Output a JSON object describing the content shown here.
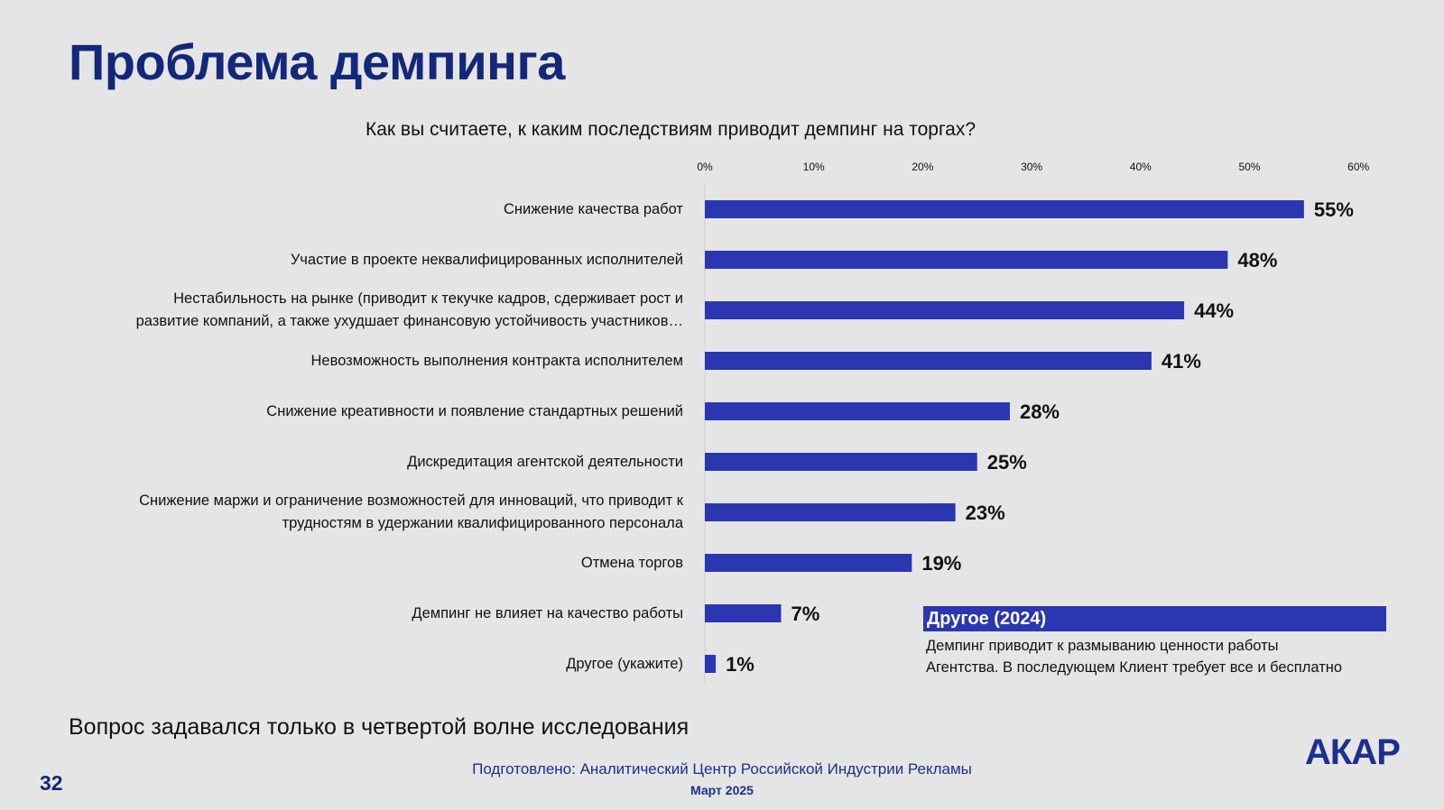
{
  "header": {
    "title": "Проблема демпинга",
    "subtitle": "Как вы считаете, к каким последствиям приводит демпинг на торгах?"
  },
  "chart_data": {
    "type": "bar",
    "orientation": "horizontal",
    "title": "Как вы считаете, к каким последствиям приводит демпинг на торгах?",
    "xlim": [
      0,
      60
    ],
    "x_ticks": [
      "0%",
      "10%",
      "20%",
      "30%",
      "40%",
      "50%",
      "60%"
    ],
    "bar_color": "#2b37b0",
    "categories": [
      [
        "Снижение качества работ"
      ],
      [
        "Участие в проекте неквалифицированных исполнителей"
      ],
      [
        "Нестабильность на рынке (приводит к текучке кадров, сдерживает рост и",
        "развитие компаний, а также ухудшает финансовую устойчивость участников…"
      ],
      [
        "Невозможность выполнения контракта исполнителем"
      ],
      [
        "Снижение креативности и появление стандартных решений"
      ],
      [
        "Дискредитация агентской деятельности"
      ],
      [
        "Снижение маржи и ограничение возможностей для инноваций, что приводит к",
        "трудностям в удержании квалифицированного персонала"
      ],
      [
        "Отмена торгов"
      ],
      [
        "Демпинг не влияет на качество работы"
      ],
      [
        "Другое (укажите)"
      ]
    ],
    "values": [
      55,
      48,
      44,
      41,
      28,
      25,
      23,
      19,
      7,
      1
    ],
    "value_labels": [
      "55%",
      "48%",
      "44%",
      "41%",
      "28%",
      "25%",
      "23%",
      "19%",
      "7%",
      "1%"
    ]
  },
  "other_box": {
    "heading": "Другое (2024)",
    "text_lines": [
      "Демпинг приводит к размыванию ценности работы",
      "Агентства. В последующем Клиент требует все и бесплатно"
    ]
  },
  "note": "Вопрос задавался только в четвертой волне исследования",
  "footer": {
    "page_number": "32",
    "prepared_by": "Подготовлено: Аналитический Центр Российской Индустрии Рекламы",
    "date": "Март 2025",
    "logo": "АКАР"
  }
}
